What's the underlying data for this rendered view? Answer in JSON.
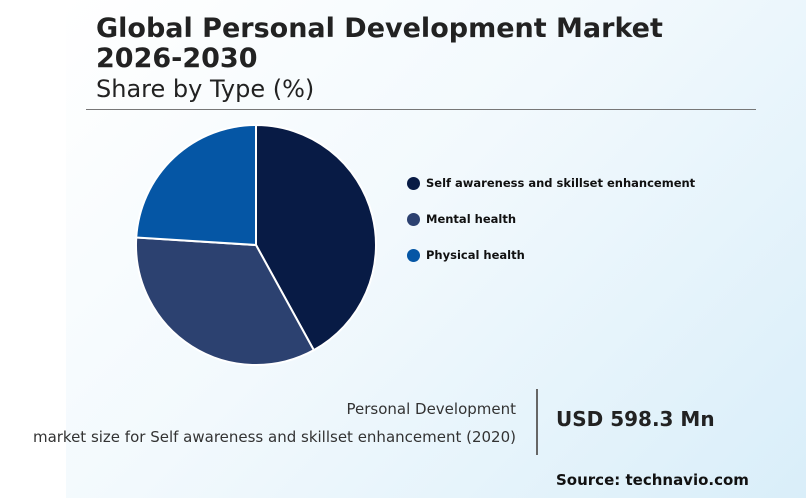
{
  "title": "Global Personal Development Market 2026-2030",
  "subtitle": "Share by Type (%)",
  "chart_data": {
    "type": "pie",
    "start_angle_deg": 0,
    "direction": "clockwise",
    "slices": [
      {
        "label": "Self awareness and skillset enhancement",
        "value": 42,
        "color": "#081b45"
      },
      {
        "label": "Mental health",
        "value": 34,
        "color": "#2c4170"
      },
      {
        "label": "Physical health",
        "value": 24,
        "color": "#0556a5"
      }
    ],
    "legend_position": "right"
  },
  "stat": {
    "line1": "Personal Development",
    "line2": "market size for Self awareness and skillset enhancement (2020)",
    "value": "USD 598.3 Mn"
  },
  "source": "Source: technavio.com"
}
